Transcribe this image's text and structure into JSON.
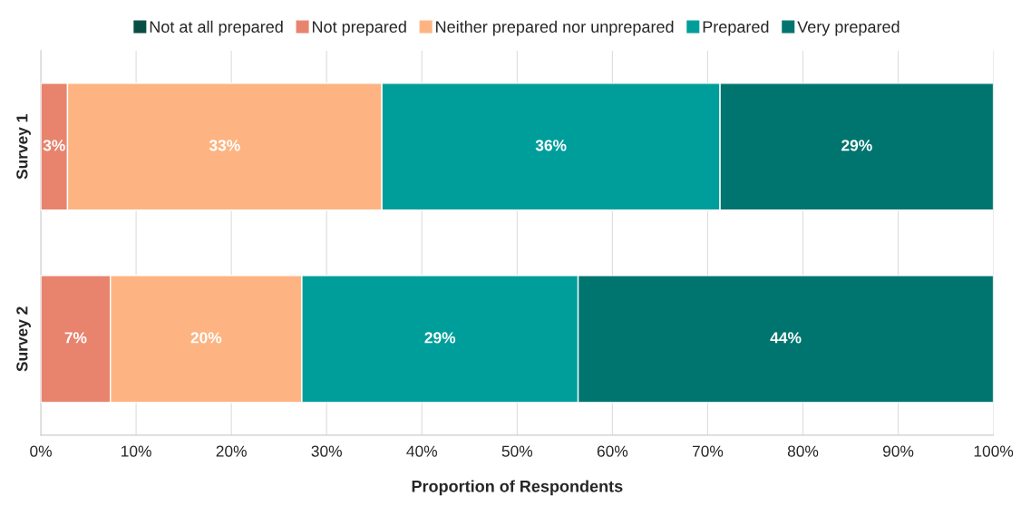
{
  "chart_data": {
    "type": "bar",
    "orientation": "horizontal",
    "stacked": true,
    "categories": [
      "Survey 1",
      "Survey 2"
    ],
    "series": [
      {
        "name": "Not at all prepared",
        "color": "#0a4d44",
        "values": [
          0,
          0
        ],
        "value_labels": [
          null,
          null
        ]
      },
      {
        "name": "Not prepared",
        "color": "#e8836d",
        "values": [
          2.8,
          7.3
        ],
        "value_labels": [
          "3%",
          "7%"
        ]
      },
      {
        "name": "Neither prepared nor unprepared",
        "color": "#fdb482",
        "values": [
          33,
          20.1
        ],
        "value_labels": [
          "33%",
          "20%"
        ]
      },
      {
        "name": "Prepared",
        "color": "#009e9b",
        "values": [
          35.5,
          29
        ],
        "value_labels": [
          "36%",
          "29%"
        ]
      },
      {
        "name": "Very prepared",
        "color": "#00756f",
        "values": [
          28.7,
          43.6
        ],
        "value_labels": [
          "29%",
          "44%"
        ]
      }
    ],
    "xlabel": "Proportion of Respondents",
    "xlim": [
      0,
      100
    ],
    "xticks": [
      {
        "value": 0,
        "label": "0%"
      },
      {
        "value": 10,
        "label": "10%"
      },
      {
        "value": 20,
        "label": "20%"
      },
      {
        "value": 30,
        "label": "30%"
      },
      {
        "value": 40,
        "label": "40%"
      },
      {
        "value": 50,
        "label": "50%"
      },
      {
        "value": 60,
        "label": "60%"
      },
      {
        "value": 70,
        "label": "70%"
      },
      {
        "value": 80,
        "label": "80%"
      },
      {
        "value": 90,
        "label": "90%"
      },
      {
        "value": 100,
        "label": "100%"
      }
    ],
    "grid": "x",
    "legend": "top"
  }
}
